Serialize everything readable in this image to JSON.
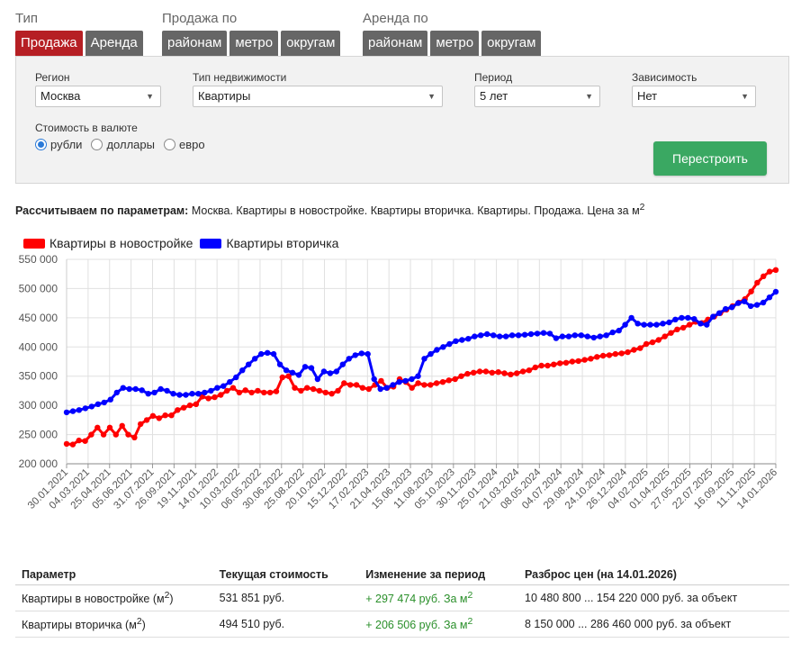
{
  "filters": {
    "type_group": {
      "label": "Тип",
      "tabs": [
        {
          "label": "Продажа",
          "active": true
        },
        {
          "label": "Аренда",
          "active": false
        }
      ]
    },
    "sale_group": {
      "label": "Продажа по",
      "tabs": [
        {
          "label": "районам"
        },
        {
          "label": "метро"
        },
        {
          "label": "округам"
        }
      ]
    },
    "rent_group": {
      "label": "Аренда по",
      "tabs": [
        {
          "label": "районам"
        },
        {
          "label": "метро"
        },
        {
          "label": "округам"
        }
      ]
    }
  },
  "form": {
    "region": {
      "label": "Регион",
      "value": "Москва"
    },
    "property_type": {
      "label": "Тип недвижимости",
      "value": "Квартиры"
    },
    "period": {
      "label": "Период",
      "value": "5 лет"
    },
    "dependency": {
      "label": "Зависимость",
      "value": "Нет"
    },
    "currency": {
      "label": "Стоимость в валюте",
      "options": [
        {
          "label": "рубли",
          "checked": true
        },
        {
          "label": "доллары",
          "checked": false
        },
        {
          "label": "евро",
          "checked": false
        }
      ]
    },
    "rebuild_label": "Перестроить"
  },
  "params": {
    "prefix": "Рассчитываем по параметрам:",
    "text": "Москва. Квартиры в новостройке. Квартиры вторичка. Квартиры. Продажа. Цена за м",
    "sup": "2"
  },
  "colors": {
    "accent": "#b61f24",
    "tab": "#666666",
    "button": "#3aa862",
    "positive": "#2a8f2a"
  },
  "chart_data": {
    "type": "line",
    "title": "",
    "xlabel": "",
    "ylabel": "",
    "ylim": [
      200000,
      550000
    ],
    "y_ticks": [
      200000,
      250000,
      300000,
      350000,
      400000,
      450000,
      500000,
      550000
    ],
    "y_tick_labels": [
      "200 000",
      "250 000",
      "300 000",
      "350 000",
      "400 000",
      "450 000",
      "500 000",
      "550 000"
    ],
    "x_tick_labels": [
      "30.01.2021",
      "04.03.2021",
      "25.04.2021",
      "05.06.2021",
      "31.07.2021",
      "26.09.2021",
      "19.11.2021",
      "14.01.2022",
      "10.03.2022",
      "06.05.2022",
      "30.06.2022",
      "25.08.2022",
      "20.10.2022",
      "15.12.2022",
      "17.02.2023",
      "21.04.2023",
      "15.06.2023",
      "11.08.2023",
      "05.10.2023",
      "30.11.2023",
      "25.01.2024",
      "21.03.2024",
      "08.05.2024",
      "04.07.2024",
      "29.08.2024",
      "24.10.2024",
      "26.12.2024",
      "04.02.2025",
      "01.04.2025",
      "27.05.2025",
      "22.07.2025",
      "16.09.2025",
      "11.11.2025",
      "14.01.2026"
    ],
    "grid": true,
    "legend_position": "top-left",
    "series": [
      {
        "name": "Квартиры в новостройке",
        "color": "#ff0000",
        "values": [
          234000,
          233000,
          240000,
          239000,
          250000,
          262000,
          250000,
          262000,
          250000,
          265000,
          250000,
          245000,
          268000,
          275000,
          282000,
          278000,
          283000,
          283000,
          292000,
          296000,
          300000,
          302000,
          315000,
          312000,
          314000,
          318000,
          325000,
          330000,
          322000,
          326000,
          322000,
          325000,
          322000,
          322000,
          324000,
          348000,
          350000,
          330000,
          325000,
          330000,
          328000,
          325000,
          322000,
          320000,
          325000,
          338000,
          335000,
          335000,
          330000,
          328000,
          335000,
          342000,
          330000,
          332000,
          345000,
          340000,
          330000,
          338000,
          335000,
          335000,
          338000,
          340000,
          343000,
          345000,
          350000,
          354000,
          356000,
          358000,
          358000,
          356000,
          357000,
          355000,
          353000,
          355000,
          358000,
          360000,
          365000,
          368000,
          368000,
          370000,
          372000,
          373000,
          375000,
          376000,
          378000,
          380000,
          383000,
          385000,
          386000,
          388000,
          389000,
          391000,
          395000,
          398000,
          405000,
          408000,
          412000,
          418000,
          424000,
          430000,
          433000,
          438000,
          443000,
          441000,
          447000,
          452000,
          458000,
          464000,
          470000,
          476000,
          482000,
          495000,
          510000,
          521000,
          529000,
          531851
        ]
      },
      {
        "name": "Квартиры вторичка",
        "color": "#0000ff",
        "values": [
          288000,
          290000,
          292000,
          295000,
          298000,
          302000,
          305000,
          310000,
          322000,
          330000,
          328000,
          328000,
          326000,
          320000,
          322000,
          328000,
          325000,
          320000,
          318000,
          318000,
          320000,
          320000,
          322000,
          325000,
          330000,
          333000,
          340000,
          348000,
          360000,
          370000,
          380000,
          388000,
          390000,
          388000,
          370000,
          360000,
          356000,
          352000,
          366000,
          364000,
          345000,
          358000,
          355000,
          358000,
          370000,
          380000,
          386000,
          389000,
          388000,
          345000,
          328000,
          330000,
          335000,
          340000,
          342000,
          345000,
          350000,
          380000,
          388000,
          395000,
          400000,
          405000,
          410000,
          412000,
          414000,
          418000,
          420000,
          422000,
          420000,
          418000,
          418000,
          420000,
          420000,
          421000,
          422000,
          423000,
          424000,
          423000,
          415000,
          418000,
          418000,
          420000,
          420000,
          418000,
          416000,
          418000,
          420000,
          425000,
          428000,
          438000,
          450000,
          440000,
          438000,
          438000,
          438000,
          440000,
          442000,
          447000,
          450000,
          450000,
          448000,
          440000,
          438000,
          452000,
          458000,
          465000,
          468000,
          475000,
          478000,
          470000,
          472000,
          476000,
          485000,
          494510
        ]
      }
    ]
  },
  "stats_table": {
    "headers": [
      "Параметр",
      "Текущая стоимость",
      "Изменение за период",
      "Разброс цен (на 14.01.2026)"
    ],
    "rows": [
      {
        "name": "Квартиры в новостройке (м",
        "current": "531 851 руб.",
        "change": "+ 297 474 руб. За м",
        "range": "10 480 800 ... 154 220 000 руб. за объект"
      },
      {
        "name": "Квартиры вторичка (м",
        "current": "494 510 руб.",
        "change": "+ 206 506 руб. За м",
        "range": "8 150 000 ... 286 460 000 руб. за объект"
      }
    ],
    "sup": "2",
    "close_paren": ")"
  }
}
